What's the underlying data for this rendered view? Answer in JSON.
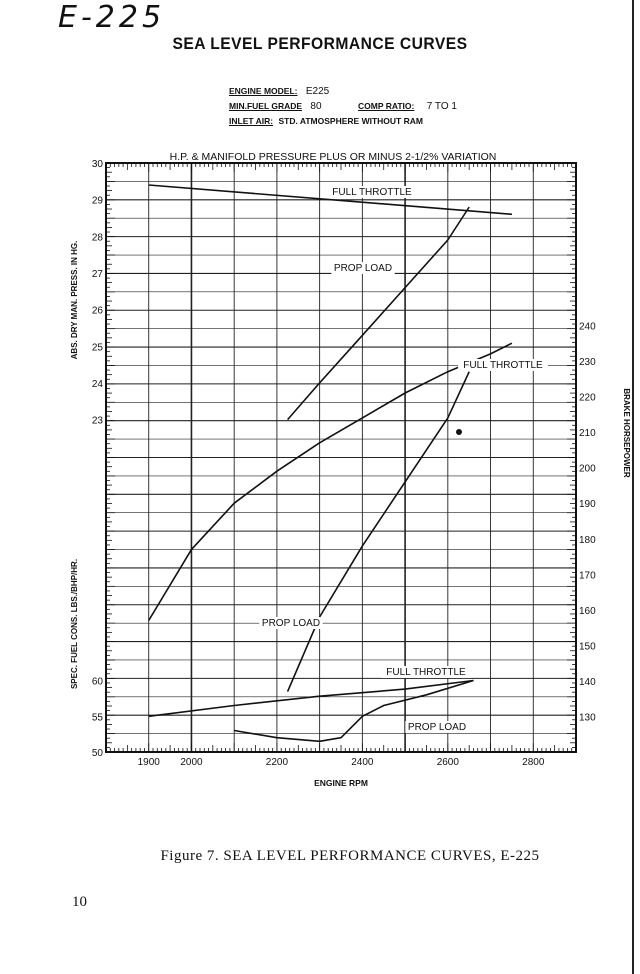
{
  "page": {
    "handwritten_id": "E-225",
    "title": "SEA LEVEL PERFORMANCE CURVES",
    "specs": {
      "engine_model_label": "ENGINE MODEL:",
      "engine_model_value": "E225",
      "fuel_grade_label": "MIN.FUEL GRADE",
      "fuel_grade_value": "80",
      "comp_ratio_label": "COMP RATIO:",
      "comp_ratio_value": "7 TO 1",
      "inlet_air_label": "INLET AIR:",
      "inlet_air_value": "STD. ATMOSPHERE WITHOUT RAM"
    },
    "caption": "Figure 7.   SEA LEVEL PERFORMANCE CURVES, E-225",
    "page_number": "10"
  },
  "chart_data": {
    "type": "line",
    "title": "H.P. & MANIFOLD PRESSURE PLUS OR MINUS 2-1/2% VARIATION",
    "xlabel": "ENGINE RPM",
    "ylabel_left_top": "ABS. DRY MAN. PRESS. IN HG.",
    "ylabel_left_bottom": "SPEC. FUEL CONS. LBS./BHP/HR.",
    "ylabel_right": "BRAKE HORSEPOWER",
    "xlim": [
      1800,
      2900
    ],
    "x_tick_labels": [
      "1900",
      "2000",
      "2200",
      "2400",
      "2600",
      "2800"
    ],
    "x_ticks": [
      1900,
      2000,
      2200,
      2400,
      2600,
      2800
    ],
    "mp_ticks": [
      23,
      24,
      25,
      26,
      27,
      28,
      29,
      30
    ],
    "sfc_ticks": [
      50,
      55,
      60
    ],
    "hp_ticks": [
      130,
      140,
      150,
      160,
      170,
      180,
      190,
      200,
      210,
      220,
      230,
      240
    ],
    "series": [
      {
        "name": "FULL THROTTLE",
        "axis": "manifold_pressure",
        "x": [
          1900,
          2750
        ],
        "y": [
          29.4,
          28.6
        ]
      },
      {
        "name": "PROP LOAD",
        "axis": "manifold_pressure",
        "x": [
          2225,
          2300,
          2400,
          2500,
          2600,
          2650
        ],
        "y": [
          23.0,
          24.0,
          25.3,
          26.6,
          27.9,
          28.8
        ]
      },
      {
        "name": "FULL THROTTLE",
        "axis": "brake_horsepower",
        "x": [
          1900,
          2000,
          2100,
          2200,
          2300,
          2400,
          2500,
          2600,
          2700,
          2750
        ],
        "y": [
          157,
          177,
          190,
          199,
          207,
          214,
          221,
          227,
          232,
          235
        ]
      },
      {
        "name": "PROP LOAD",
        "axis": "brake_horsepower",
        "x": [
          2225,
          2300,
          2400,
          2500,
          2600,
          2650
        ],
        "y": [
          137,
          158,
          178,
          196,
          214,
          227
        ]
      },
      {
        "name": "FULL THROTTLE",
        "axis": "specific_fuel_consumption",
        "x": [
          1900,
          2100,
          2300,
          2500,
          2660
        ],
        "y": [
          55,
          56.5,
          57.8,
          58.8,
          60.0
        ]
      },
      {
        "name": "PROP LOAD",
        "axis": "specific_fuel_consumption",
        "x": [
          2100,
          2200,
          2300,
          2350,
          2400,
          2450,
          2550,
          2660
        ],
        "y": [
          53.0,
          52.0,
          51.5,
          52.0,
          55.0,
          56.5,
          58.0,
          60.0
        ]
      }
    ],
    "grid": true
  }
}
